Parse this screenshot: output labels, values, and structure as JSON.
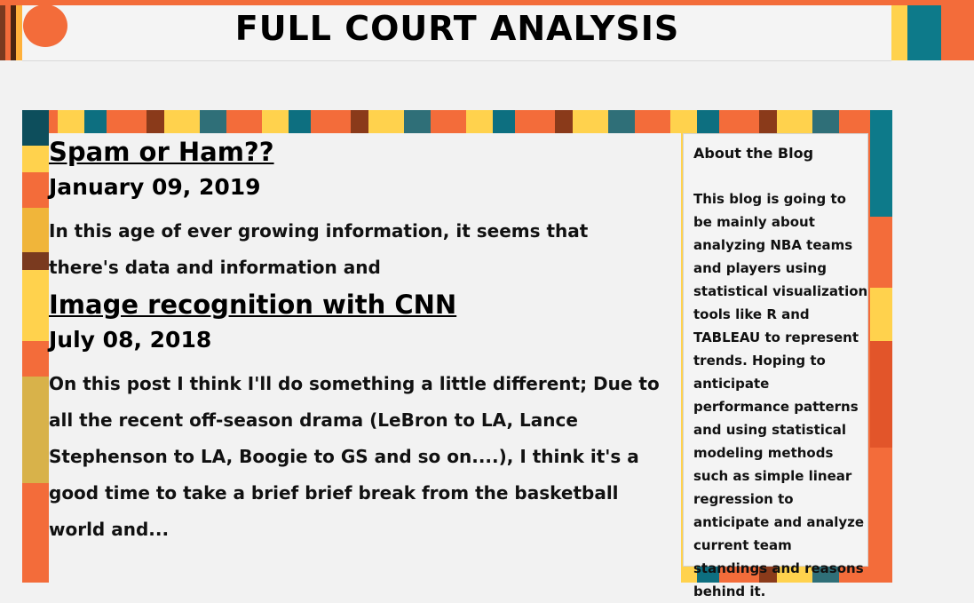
{
  "header": {
    "site_title": "FULL COURT ANALYSIS",
    "accent_color": "#f36c3a"
  },
  "posts": [
    {
      "title": "Spam or Ham??",
      "date": "January 09, 2019",
      "excerpt": "In this age of ever growing information, it seems that there's data and information and"
    },
    {
      "title": "Image recognition with CNN",
      "date": "July 08, 2018",
      "excerpt": "On this post I think I'll do something a little different; Due to all the recent off-season drama (LeBron to LA, Lance Stephenson to LA, Boogie to GS and so on....), I think it's a good time to take a brief brief break from the basketball world and..."
    }
  ],
  "sidebar": {
    "heading": "About the Blog",
    "text": "This blog is going to be mainly about analyzing NBA teams and players using statistical visualization tools like R and TABLEAU to represent trends. Hoping to anticipate performance patterns and using statistical modeling methods such as simple linear regression to anticipate and analyze current team standings and reasons behind it."
  }
}
